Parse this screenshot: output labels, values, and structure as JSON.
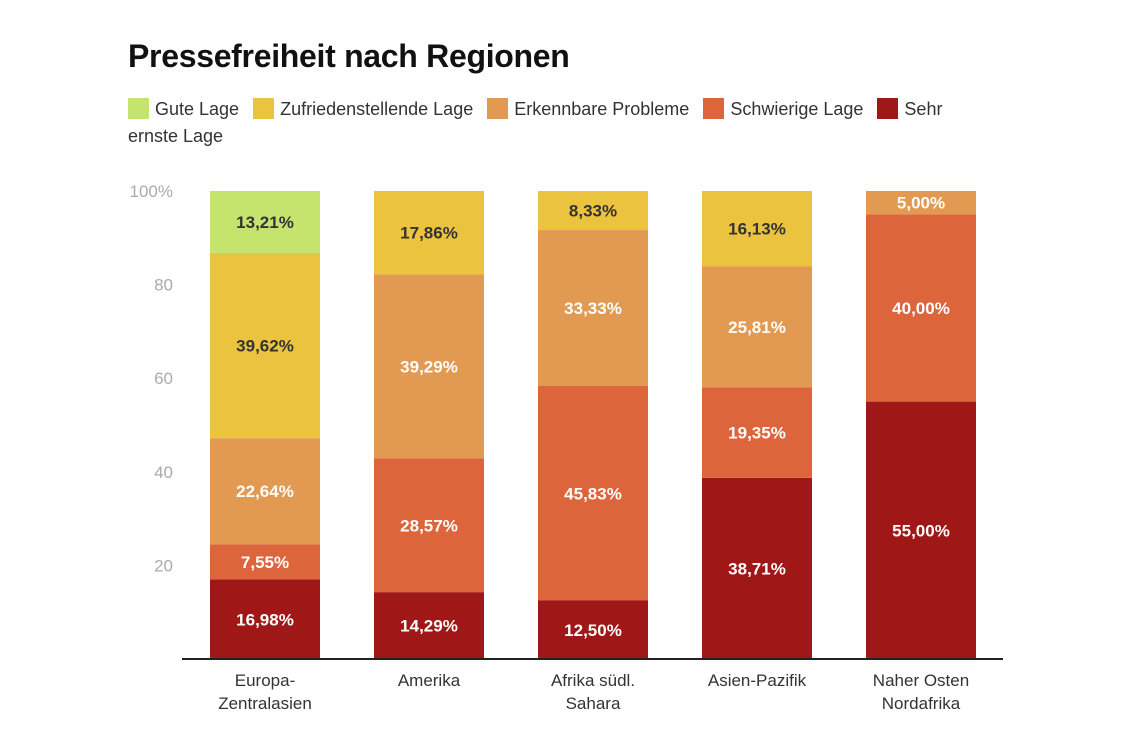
{
  "chart_data": {
    "type": "bar",
    "stacked": true,
    "title": "Pressefreiheit nach Regionen",
    "categories": [
      [
        "Europa-",
        "Zentralasien"
      ],
      [
        "Amerika"
      ],
      [
        "Afrika südl.",
        "Sahara"
      ],
      [
        "Asien-Pazifik"
      ],
      [
        "Naher Osten",
        "Nordafrika"
      ]
    ],
    "ylim": [
      0,
      100
    ],
    "yticks": [
      "20",
      "40",
      "60",
      "80",
      "100%"
    ],
    "ytick_values": [
      20,
      40,
      60,
      80,
      100
    ],
    "series": [
      {
        "name": "Sehr ernste Lage",
        "color": "#a01717",
        "label_color": "#ffffff",
        "values": [
          16.98,
          14.29,
          12.5,
          38.71,
          55.0
        ],
        "labels": [
          "16,98%",
          "14,29%",
          "12,50%",
          "38,71%",
          "55,00%"
        ]
      },
      {
        "name": "Schwierige Lage",
        "color": "#dd653c",
        "label_color": "#ffffff",
        "values": [
          7.55,
          28.57,
          45.83,
          19.35,
          40.0
        ],
        "labels": [
          "7,55%",
          "28,57%",
          "45,83%",
          "19,35%",
          "40,00%"
        ]
      },
      {
        "name": "Erkennbare Probleme",
        "color": "#e29a52",
        "label_color": "#ffffff",
        "values": [
          22.64,
          39.29,
          33.33,
          25.81,
          5.0
        ],
        "labels": [
          "22,64%",
          "39,29%",
          "33,33%",
          "25,81%",
          "5,00%"
        ]
      },
      {
        "name": "Zufriedenstellende Lage",
        "color": "#ecc33e",
        "label_color": "#333333",
        "values": [
          39.62,
          17.86,
          8.33,
          16.13,
          0
        ],
        "labels": [
          "39,62%",
          "17,86%",
          "8,33%",
          "16,13%",
          ""
        ]
      },
      {
        "name": "Gute Lage",
        "color": "#c5e46e",
        "label_color": "#333333",
        "values": [
          13.21,
          0,
          0,
          0,
          0
        ],
        "labels": [
          "13,21%",
          "",
          "",
          "",
          ""
        ]
      }
    ],
    "legend_order": [
      "Gute Lage",
      "Zufriedenstellende Lage",
      "Erkennbare Probleme",
      "Schwierige Lage",
      "Sehr ernste Lage"
    ],
    "legend_placement": "top",
    "grid": false
  }
}
